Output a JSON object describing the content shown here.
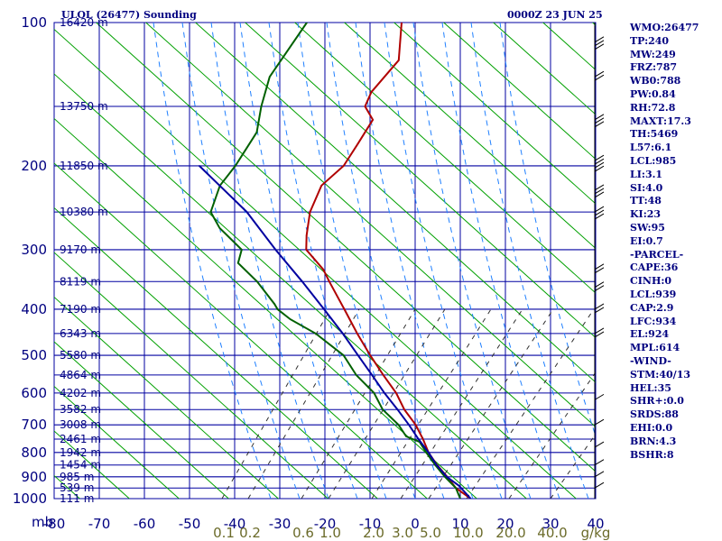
{
  "chart_data": {
    "type": "line",
    "title_left": "ULOL (26477) Sounding",
    "title_right": "0000Z 23 JUN 25",
    "x_axis_unit": "C",
    "x_range": [
      -80,
      40
    ],
    "x_ticks": [
      -80,
      -70,
      -60,
      -50,
      -40,
      -30,
      -20,
      -10,
      0,
      10,
      20,
      30,
      40
    ],
    "y_axis_unit": "mb",
    "y_scale": "log",
    "y_range": [
      1000,
      100
    ],
    "y_ticks": [
      100,
      200,
      300,
      400,
      500,
      600,
      700,
      800,
      900,
      1000
    ],
    "height_labels": [
      {
        "p": 100,
        "label": "16420 m"
      },
      {
        "p": 150,
        "label": "13750 m"
      },
      {
        "p": 200,
        "label": "11850 m"
      },
      {
        "p": 250,
        "label": "10380 m"
      },
      {
        "p": 300,
        "label": "9170 m"
      },
      {
        "p": 350,
        "label": "8119 m"
      },
      {
        "p": 400,
        "label": "7190 m"
      },
      {
        "p": 450,
        "label": "6343 m"
      },
      {
        "p": 500,
        "label": "5580 m"
      },
      {
        "p": 550,
        "label": "4864 m"
      },
      {
        "p": 600,
        "label": "4202 m"
      },
      {
        "p": 650,
        "label": "3582 m"
      },
      {
        "p": 700,
        "label": "3008 m"
      },
      {
        "p": 750,
        "label": "2461 m"
      },
      {
        "p": 800,
        "label": "1942 m"
      },
      {
        "p": 850,
        "label": "1454 m"
      },
      {
        "p": 900,
        "label": "985 m"
      },
      {
        "p": 950,
        "label": "539 m"
      },
      {
        "p": 1000,
        "label": "111 m"
      }
    ],
    "mixing_ratio_labels": [
      "0.1",
      "0.2",
      "0.6",
      "1.0",
      "2.0",
      "3.0",
      "5.0",
      "10.0",
      "20.0",
      "40.0",
      "g/kg"
    ],
    "series": [
      {
        "color": "#b00000",
        "points": [
          {
            "p": 1000,
            "t": 12.3
          },
          {
            "p": 950,
            "t": 8.0
          },
          {
            "p": 900,
            "t": 5.0
          },
          {
            "p": 850,
            "t": 1.6
          },
          {
            "p": 800,
            "t": -1.5
          },
          {
            "p": 750,
            "t": -4.0
          },
          {
            "p": 700,
            "t": -7.0
          },
          {
            "p": 650,
            "t": -11.0
          },
          {
            "p": 600,
            "t": -14.4
          },
          {
            "p": 550,
            "t": -19.0
          },
          {
            "p": 500,
            "t": -23.8
          },
          {
            "p": 450,
            "t": -28.8
          },
          {
            "p": 400,
            "t": -34.0
          },
          {
            "p": 350,
            "t": -40.0
          },
          {
            "p": 330,
            "t": -42.5
          },
          {
            "p": 300,
            "t": -48.2
          },
          {
            "p": 280,
            "t": -49.5
          },
          {
            "p": 250,
            "t": -51.0
          },
          {
            "p": 220,
            "t": -51.0
          },
          {
            "p": 200,
            "t": -48.0
          },
          {
            "p": 180,
            "t": -47.0
          },
          {
            "p": 160,
            "t": -46.0
          },
          {
            "p": 150,
            "t": -49.0
          },
          {
            "p": 140,
            "t": -49.0
          },
          {
            "p": 120,
            "t": -46.0
          },
          {
            "p": 100,
            "t": -49.0
          }
        ]
      },
      {
        "color": "#006000",
        "points": [
          {
            "p": 1000,
            "t": 10.0
          },
          {
            "p": 950,
            "t": 8.0
          },
          {
            "p": 900,
            "t": 4.5
          },
          {
            "p": 850,
            "t": 1.2
          },
          {
            "p": 800,
            "t": -2.0
          },
          {
            "p": 760,
            "t": -4.5
          },
          {
            "p": 740,
            "t": -8.0
          },
          {
            "p": 700,
            "t": -10.8
          },
          {
            "p": 650,
            "t": -15.8
          },
          {
            "p": 600,
            "t": -19.3
          },
          {
            "p": 550,
            "t": -25.0
          },
          {
            "p": 500,
            "t": -29.7
          },
          {
            "p": 450,
            "t": -38.0
          },
          {
            "p": 420,
            "t": -45.0
          },
          {
            "p": 400,
            "t": -48.8
          },
          {
            "p": 390,
            "t": -50.0
          },
          {
            "p": 350,
            "t": -56.0
          },
          {
            "p": 320,
            "t": -62.0
          },
          {
            "p": 300,
            "t": -62.5
          },
          {
            "p": 270,
            "t": -69.5
          },
          {
            "p": 250,
            "t": -73.0
          },
          {
            "p": 220,
            "t": -73.5
          },
          {
            "p": 200,
            "t": -72.0
          },
          {
            "p": 170,
            "t": -70.5
          },
          {
            "p": 150,
            "t": -72.0
          },
          {
            "p": 130,
            "t": -73.0
          },
          {
            "p": 100,
            "t": -70.0
          }
        ]
      },
      {
        "color": "#0000a0",
        "points": [
          {
            "p": 1000,
            "t": 12.3
          },
          {
            "p": 940,
            "t": 8.5
          },
          {
            "p": 900,
            "t": 4.9
          },
          {
            "p": 850,
            "t": 1.5
          },
          {
            "p": 800,
            "t": -1.5
          },
          {
            "p": 750,
            "t": -5.0
          },
          {
            "p": 700,
            "t": -8.5
          },
          {
            "p": 650,
            "t": -12.5
          },
          {
            "p": 600,
            "t": -17.0
          },
          {
            "p": 550,
            "t": -21.5
          },
          {
            "p": 500,
            "t": -26.5
          },
          {
            "p": 450,
            "t": -32.0
          },
          {
            "p": 400,
            "t": -38.5
          },
          {
            "p": 350,
            "t": -46.0
          },
          {
            "p": 300,
            "t": -55.0
          },
          {
            "p": 250,
            "t": -65.0
          },
          {
            "p": 200,
            "t": -80.0
          }
        ]
      }
    ]
  },
  "indices": [
    "WMO:26477",
    "TP:240",
    "MW:249",
    "FRZ:787",
    "WB0:788",
    "PW:0.84",
    "RH:72.8",
    "MAXT:17.3",
    "TH:5469",
    "L57:6.1",
    "LCL:985",
    "LI:3.1",
    "SI:4.0",
    "TT:48",
    "KI:23",
    "SW:95",
    "EI:0.7",
    "-PARCEL-",
    "CAPE:36",
    "CINH:0",
    "LCL:939",
    "CAP:2.9",
    "LFC:934",
    "EL:924",
    "MPL:614",
    "-WIND-",
    "STM:40/13",
    "HEL:35",
    "SHR+:0.0",
    "SRDS:88",
    "EHI:0.0",
    "BRN:4.3",
    "BSHR:8"
  ],
  "colors": {
    "grid": "#0000a0",
    "dry_adiabat": "#00a000",
    "moist_adiabat": "#2080ff",
    "mixing_ratio": "#303030"
  }
}
